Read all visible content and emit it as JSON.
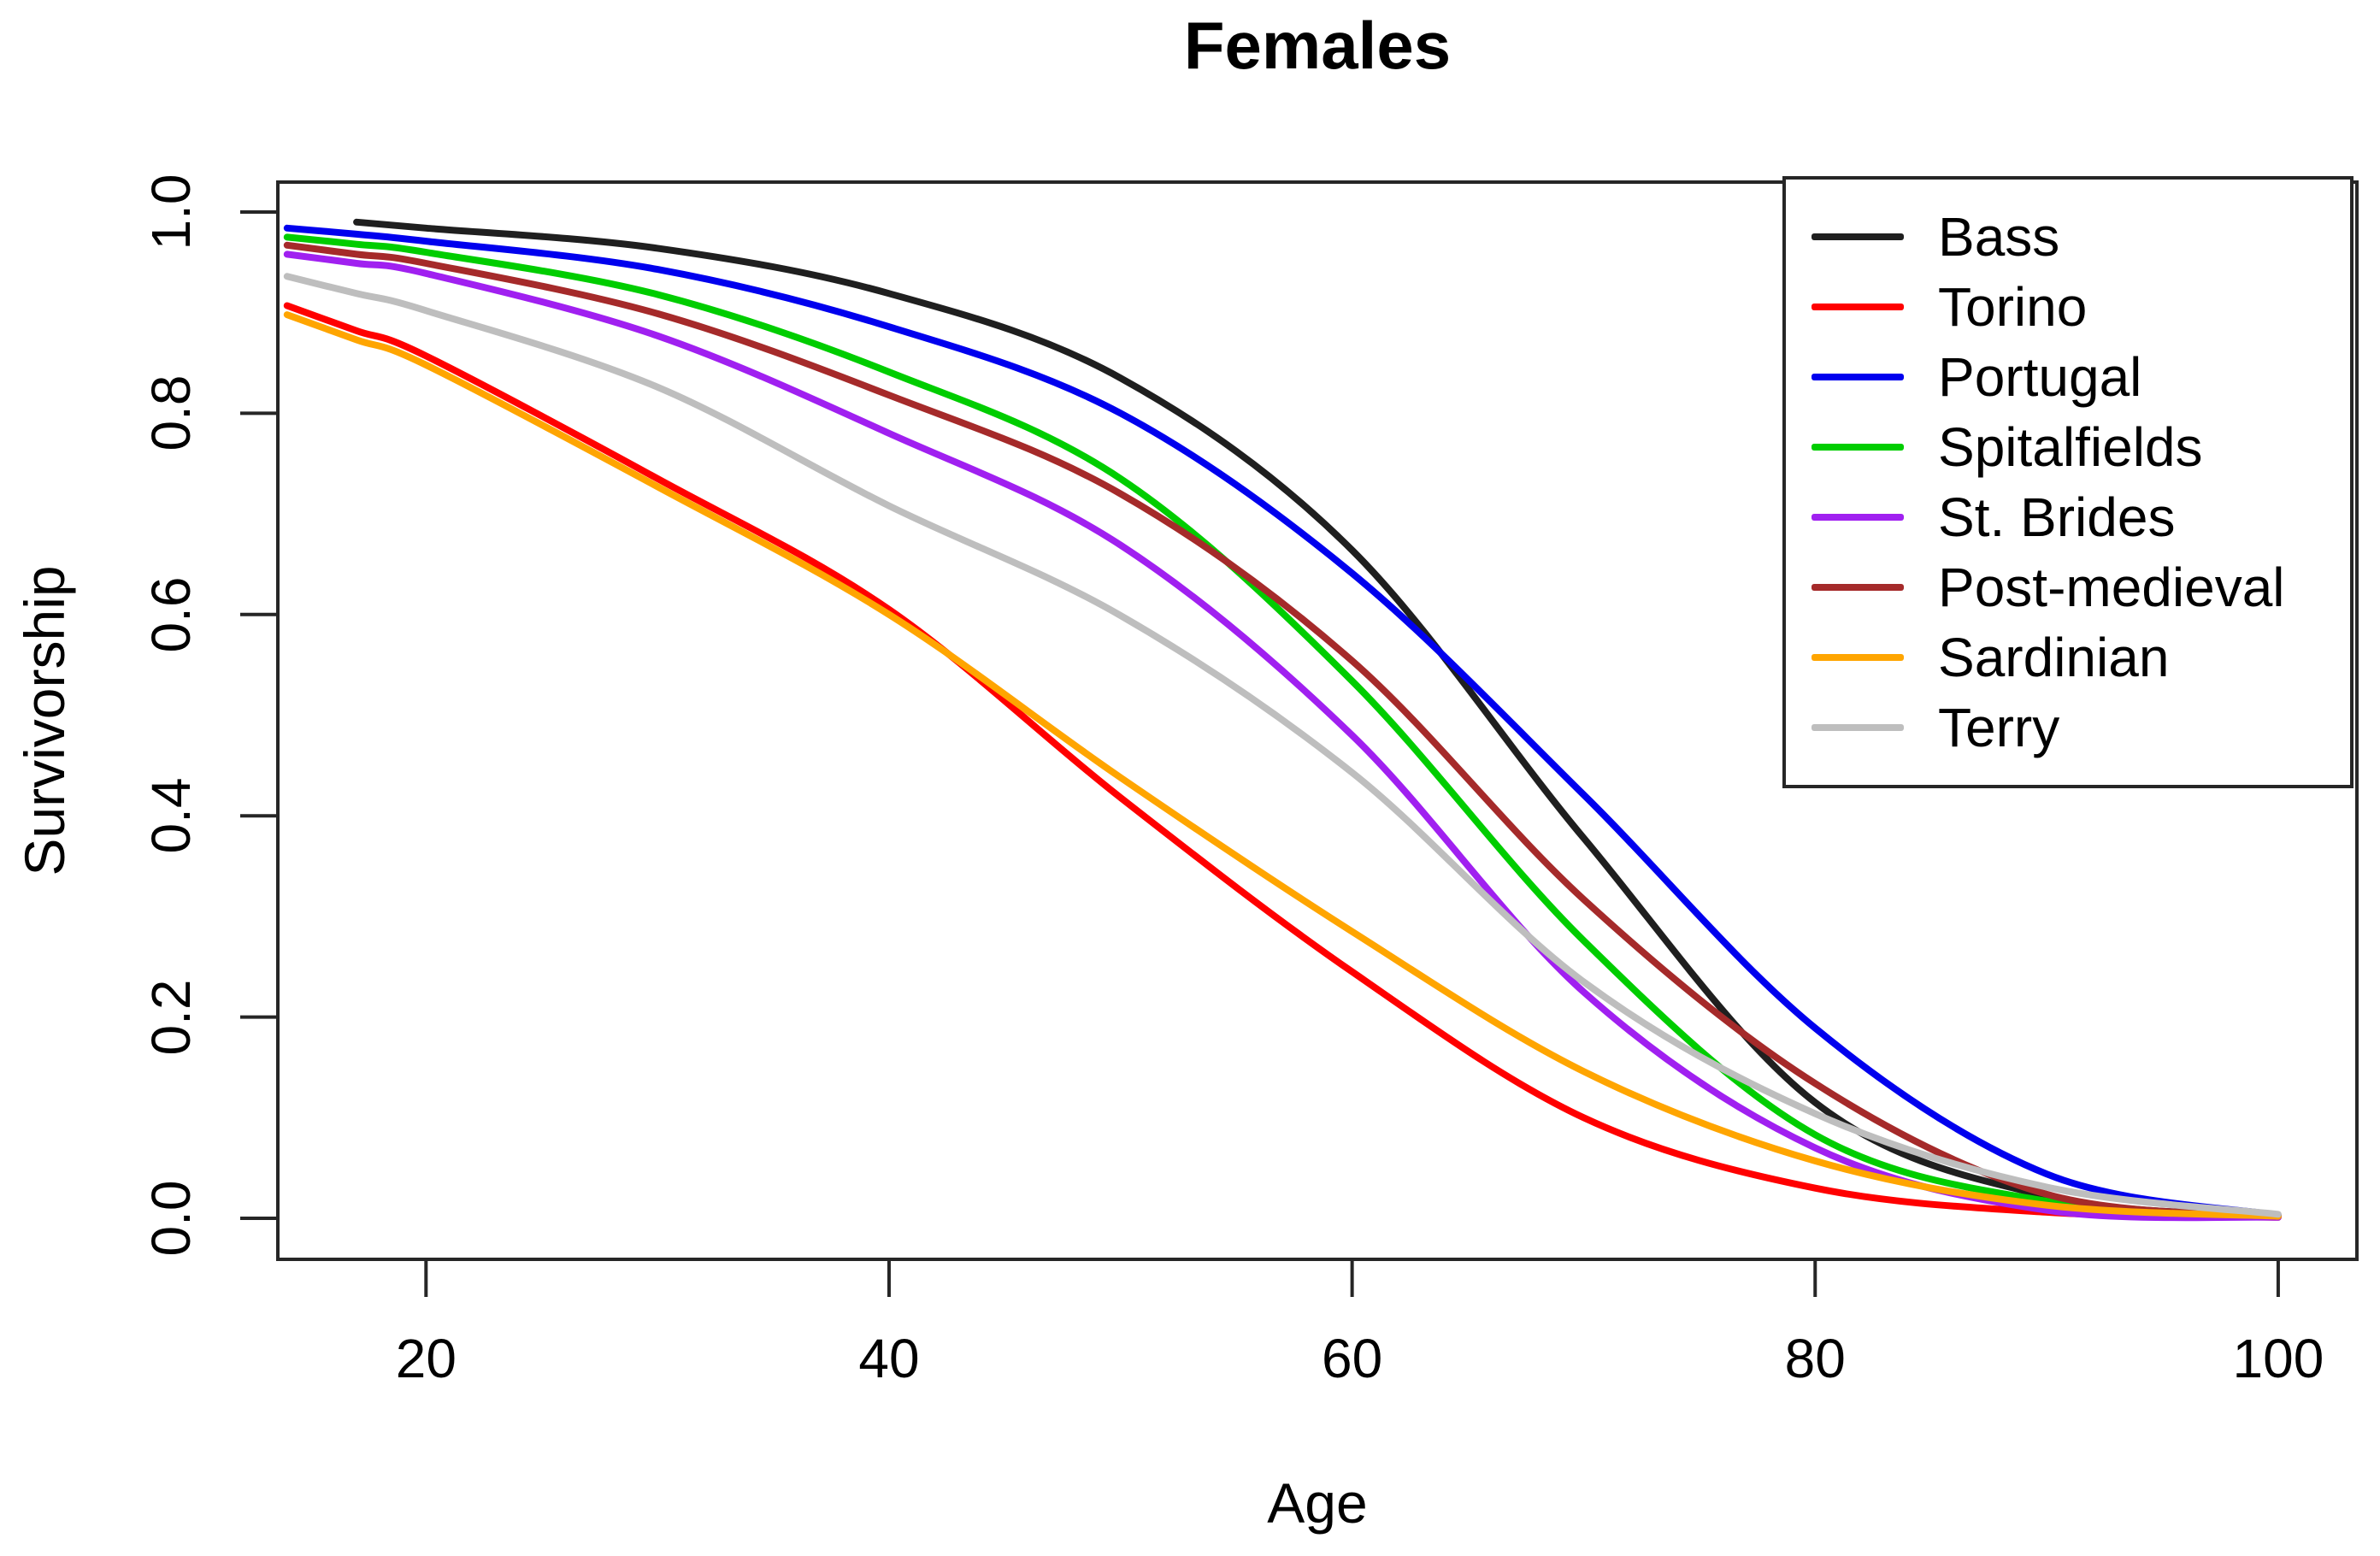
{
  "title": "Females",
  "axes": {
    "x": {
      "label": "Age",
      "ticks": [
        20,
        40,
        60,
        80,
        100
      ]
    },
    "y": {
      "label": "Survivorship",
      "ticks": [
        "0.0",
        "0.2",
        "0.4",
        "0.6",
        "0.8",
        "1.0"
      ]
    }
  },
  "legend": {
    "position": "top-right",
    "items": [
      {
        "label": "Bass",
        "color": "#1f1f1f"
      },
      {
        "label": "Torino",
        "color": "#ff0000"
      },
      {
        "label": "Portugal",
        "color": "#0000ee"
      },
      {
        "label": "Spitalfields",
        "color": "#00cd00"
      },
      {
        "label": "St. Brides",
        "color": "#a020f0"
      },
      {
        "label": "Post-medieval",
        "color": "#a52a2a"
      },
      {
        "label": "Sardinian",
        "color": "#ffa500"
      },
      {
        "label": "Terry",
        "color": "#bebebe"
      }
    ]
  },
  "chart_data": {
    "type": "line",
    "title": "Females",
    "xlabel": "Age",
    "ylabel": "Survivorship",
    "xlim": [
      13.6,
      103.4
    ],
    "ylim": [
      0.0,
      1.0
    ],
    "grid": false,
    "legend_position": "top-right",
    "x": [
      14,
      17,
      20,
      30,
      40,
      50,
      60,
      70,
      80,
      90,
      100
    ],
    "series": [
      {
        "name": "Bass",
        "color": "#1f1f1f",
        "values": [
          null,
          0.99,
          0.984,
          0.964,
          0.919,
          0.835,
          0.664,
          0.378,
          0.115,
          0.022,
          0.002
        ]
      },
      {
        "name": "Torino",
        "color": "#ff0000",
        "values": [
          0.907,
          0.882,
          0.857,
          0.735,
          0.605,
          0.418,
          0.245,
          0.1,
          0.03,
          0.006,
          0.001
        ]
      },
      {
        "name": "Portugal",
        "color": "#0000ee",
        "values": [
          0.984,
          0.978,
          0.971,
          0.943,
          0.886,
          0.8,
          0.641,
          0.421,
          0.189,
          0.044,
          0.003
        ]
      },
      {
        "name": "Spitalfields",
        "color": "#00cd00",
        "values": [
          0.975,
          0.968,
          0.96,
          0.918,
          0.841,
          0.735,
          0.534,
          0.276,
          0.083,
          0.017,
          0.002
        ]
      },
      {
        "name": "St. Brides",
        "color": "#a020f0",
        "values": [
          0.958,
          0.949,
          0.939,
          0.877,
          0.78,
          0.669,
          0.48,
          0.225,
          0.07,
          0.008,
          0.001
        ]
      },
      {
        "name": "Post-medieval",
        "color": "#a52a2a",
        "values": [
          0.967,
          0.958,
          0.949,
          0.899,
          0.818,
          0.72,
          0.554,
          0.317,
          0.134,
          0.024,
          0.002
        ]
      },
      {
        "name": "Sardinian",
        "color": "#ffa500",
        "values": [
          0.898,
          0.873,
          0.848,
          0.727,
          0.6,
          0.438,
          0.285,
          0.146,
          0.057,
          0.013,
          0.002
        ]
      },
      {
        "name": "Terry",
        "color": "#bebebe",
        "values": [
          0.936,
          0.919,
          0.902,
          0.826,
          0.708,
          0.599,
          0.443,
          0.235,
          0.104,
          0.031,
          0.004
        ]
      }
    ]
  },
  "layout_colors": {
    "axis": "#262626",
    "text": "#000000",
    "background": "#ffffff"
  }
}
